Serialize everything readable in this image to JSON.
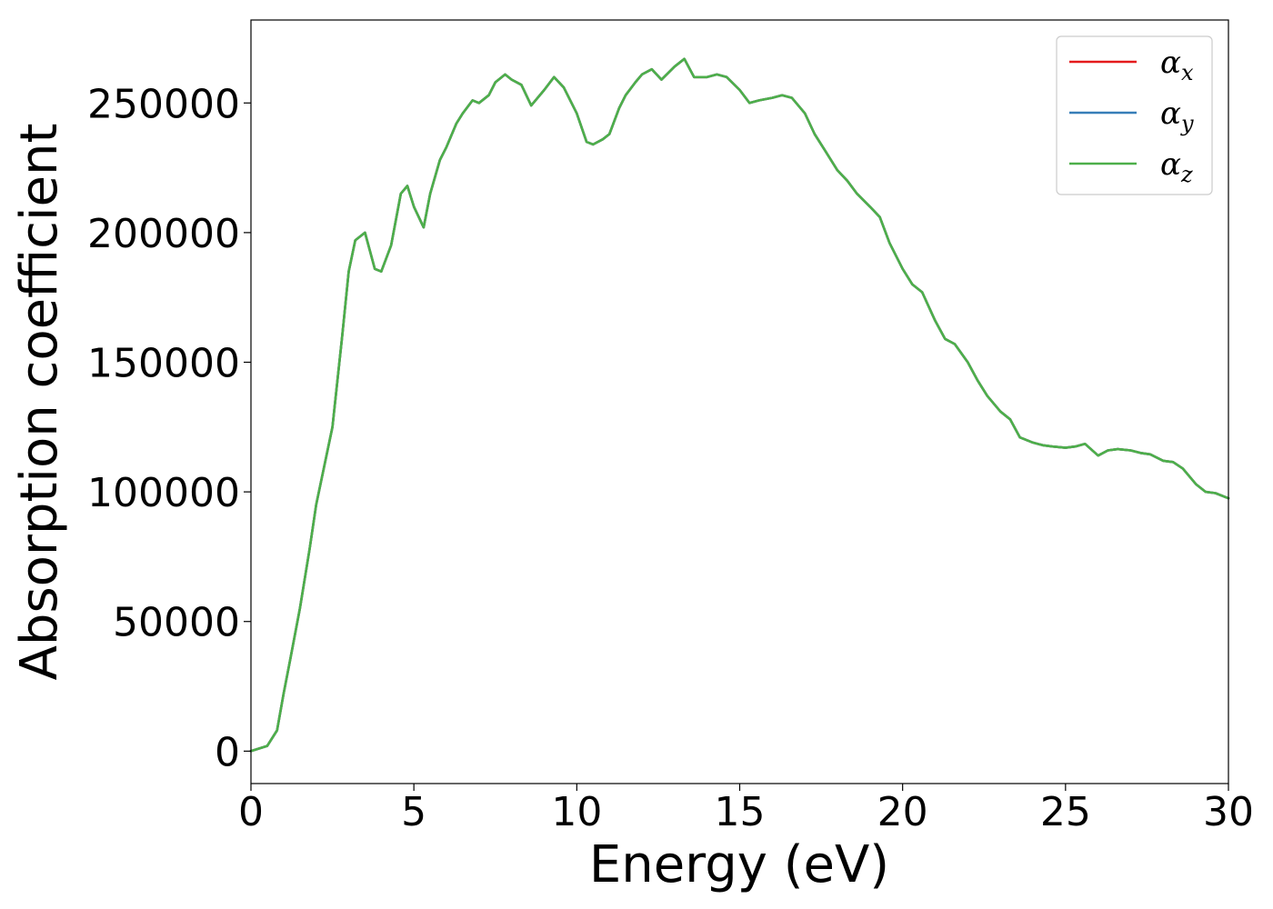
{
  "chart_data": {
    "type": "line",
    "xlabel": "Energy (eV)",
    "ylabel": "Absorption coefficient",
    "xlim": [
      0,
      30
    ],
    "ylim": [
      -12500,
      282000
    ],
    "xticks": [
      0,
      5,
      10,
      15,
      20,
      25,
      30
    ],
    "yticks": [
      0,
      50000,
      100000,
      150000,
      200000,
      250000
    ],
    "grid": false,
    "legend_position": "top-right",
    "x": [
      0,
      0.5,
      0.8,
      1.0,
      1.2,
      1.5,
      1.8,
      2.0,
      2.5,
      2.8,
      3.0,
      3.2,
      3.5,
      3.8,
      4.0,
      4.3,
      4.6,
      4.8,
      5.0,
      5.3,
      5.5,
      5.8,
      6.0,
      6.3,
      6.5,
      6.8,
      7.0,
      7.3,
      7.5,
      7.8,
      8.0,
      8.3,
      8.6,
      9.0,
      9.3,
      9.6,
      10.0,
      10.3,
      10.5,
      10.8,
      11.0,
      11.3,
      11.5,
      11.8,
      12.0,
      12.3,
      12.6,
      13.0,
      13.3,
      13.6,
      14.0,
      14.3,
      14.6,
      15.0,
      15.3,
      15.6,
      16.0,
      16.3,
      16.6,
      17.0,
      17.3,
      17.6,
      18.0,
      18.3,
      18.6,
      19.0,
      19.3,
      19.6,
      20.0,
      20.3,
      20.6,
      21.0,
      21.3,
      21.6,
      22.0,
      22.3,
      22.6,
      23.0,
      23.3,
      23.6,
      24.0,
      24.3,
      24.6,
      25.0,
      25.3,
      25.6,
      26.0,
      26.3,
      26.6,
      27.0,
      27.3,
      27.6,
      28.0,
      28.3,
      28.6,
      29.0,
      29.3,
      29.6,
      30.0
    ],
    "series": [
      {
        "name": "αx",
        "label": "α",
        "subscript": "x",
        "color": "#e41a1c",
        "values": [
          0,
          2000,
          8000,
          22000,
          35000,
          55000,
          78000,
          95000,
          125000,
          160000,
          185000,
          197000,
          200000,
          186000,
          185000,
          195000,
          215000,
          218000,
          210000,
          202000,
          215000,
          228000,
          233000,
          242000,
          246000,
          251000,
          250000,
          253000,
          258000,
          261000,
          259000,
          257000,
          249000,
          255000,
          260000,
          256000,
          246000,
          235000,
          234000,
          236000,
          238000,
          248000,
          253000,
          258000,
          261000,
          263000,
          259000,
          264000,
          267000,
          260000,
          260000,
          261000,
          260000,
          255000,
          250000,
          251000,
          252000,
          253000,
          252000,
          246000,
          238000,
          232000,
          224000,
          220000,
          215000,
          210000,
          206000,
          196000,
          186000,
          180000,
          177000,
          166000,
          159000,
          157000,
          150000,
          143000,
          137000,
          131000,
          128000,
          121000,
          119000,
          118000,
          117500,
          117000,
          117500,
          118500,
          114000,
          116000,
          116500,
          116000,
          115000,
          114500,
          112000,
          111500,
          109000,
          103000,
          100000,
          99500,
          97500
        ]
      },
      {
        "name": "αy",
        "label": "α",
        "subscript": "y",
        "color": "#377eb8",
        "values": [
          0,
          2000,
          8000,
          22000,
          35000,
          55000,
          78000,
          95000,
          125000,
          160000,
          185000,
          197000,
          200000,
          186000,
          185000,
          195000,
          215000,
          218000,
          210000,
          202000,
          215000,
          228000,
          233000,
          242000,
          246000,
          251000,
          250000,
          253000,
          258000,
          261000,
          259000,
          257000,
          249000,
          255000,
          260000,
          256000,
          246000,
          235000,
          234000,
          236000,
          238000,
          248000,
          253000,
          258000,
          261000,
          263000,
          259000,
          264000,
          267000,
          260000,
          260000,
          261000,
          260000,
          255000,
          250000,
          251000,
          252000,
          253000,
          252000,
          246000,
          238000,
          232000,
          224000,
          220000,
          215000,
          210000,
          206000,
          196000,
          186000,
          180000,
          177000,
          166000,
          159000,
          157000,
          150000,
          143000,
          137000,
          131000,
          128000,
          121000,
          119000,
          118000,
          117500,
          117000,
          117500,
          118500,
          114000,
          116000,
          116500,
          116000,
          115000,
          114500,
          112000,
          111500,
          109000,
          103000,
          100000,
          99500,
          97500
        ]
      },
      {
        "name": "αz",
        "label": "α",
        "subscript": "z",
        "color": "#4daf4a",
        "values": [
          0,
          2000,
          8000,
          22000,
          35000,
          55000,
          78000,
          95000,
          125000,
          160000,
          185000,
          197000,
          200000,
          186000,
          185000,
          195000,
          215000,
          218000,
          210000,
          202000,
          215000,
          228000,
          233000,
          242000,
          246000,
          251000,
          250000,
          253000,
          258000,
          261000,
          259000,
          257000,
          249000,
          255000,
          260000,
          256000,
          246000,
          235000,
          234000,
          236000,
          238000,
          248000,
          253000,
          258000,
          261000,
          263000,
          259000,
          264000,
          267000,
          260000,
          260000,
          261000,
          260000,
          255000,
          250000,
          251000,
          252000,
          253000,
          252000,
          246000,
          238000,
          232000,
          224000,
          220000,
          215000,
          210000,
          206000,
          196000,
          186000,
          180000,
          177000,
          166000,
          159000,
          157000,
          150000,
          143000,
          137000,
          131000,
          128000,
          121000,
          119000,
          118000,
          117500,
          117000,
          117500,
          118500,
          114000,
          116000,
          116500,
          116000,
          115000,
          114500,
          112000,
          111500,
          109000,
          103000,
          100000,
          99500,
          97500
        ]
      }
    ]
  }
}
